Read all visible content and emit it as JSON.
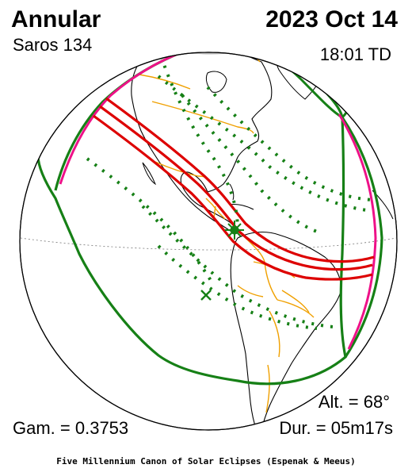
{
  "header": {
    "eclipse_type": "Annular",
    "saros": "Saros 134",
    "date": "2023 Oct 14",
    "time": "18:01 TD"
  },
  "stats": {
    "altitude": "Alt. = 68°",
    "gamma": "Gam. = 0.3753",
    "duration": "Dur. = 05m17s"
  },
  "footer": "Five Millennium Canon of Solar Eclipses (Espenak & Meeus)",
  "colors": {
    "central_path": "#dd0000",
    "penumbra_limits": "#168016",
    "rise_set_curve": "#ee1188",
    "borders": "#f0a000",
    "night_cap": "#bbbbbb",
    "land_outline": "#000000"
  }
}
